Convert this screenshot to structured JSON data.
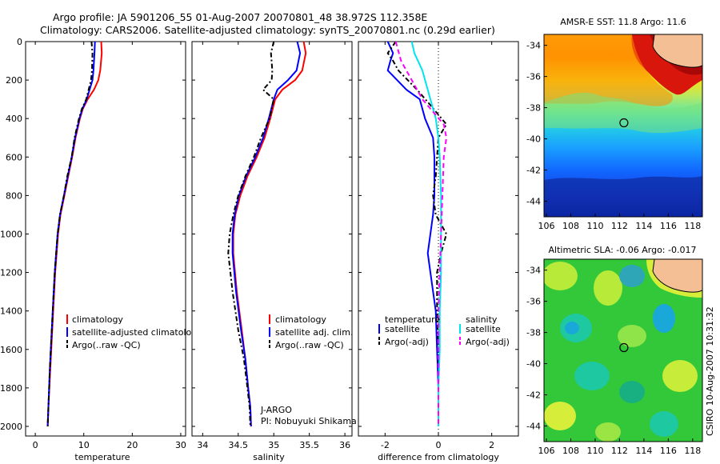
{
  "title": {
    "line1": "Argo profile: JA 5901206_55 01-Aug-2007 20070801_48 38.972S 112.358E",
    "line2": "Climatology: CARS2006. Satellite-adjusted climatology: synTS_20070801.nc (0.29d earlier)"
  },
  "colors": {
    "climatology": "#ff0000",
    "satellite": "#0000ff",
    "argo": "#000000",
    "salinity_satellite": "#00e5ee",
    "salinity_argo": "#ff00ff",
    "land": "#f4bf95"
  },
  "side_text": "CSIRO 10-Aug-2007 10:31:32",
  "chart_data": [
    {
      "type": "line",
      "id": "temperature",
      "xlabel": "temperature",
      "ylabel": "",
      "xlim": [
        -2,
        31
      ],
      "ylim": [
        2050,
        0
      ],
      "xticks": [
        0,
        10,
        20,
        30
      ],
      "yticks": [
        0,
        200,
        400,
        600,
        800,
        1000,
        1200,
        1400,
        1600,
        1800,
        2000
      ],
      "legend": {
        "position": "lower-right",
        "entries": [
          "climatology",
          "satellite-adjusted climatology",
          "Argo(..raw -QC)"
        ]
      },
      "series": [
        {
          "name": "climatology",
          "color": "#ff0000",
          "dash": "",
          "x": [
            13.6,
            13.7,
            13.4,
            13.0,
            12.1,
            10.8,
            9.8,
            9.2,
            8.3,
            7.6,
            6.8,
            6.0,
            5.2,
            4.7,
            4.1,
            3.7,
            3.4,
            3.1,
            2.9,
            2.7,
            2.55
          ],
          "y": [
            0,
            60,
            150,
            200,
            250,
            300,
            350,
            400,
            500,
            600,
            700,
            800,
            900,
            1000,
            1200,
            1400,
            1550,
            1700,
            1800,
            1900,
            2000
          ]
        },
        {
          "name": "satellite-adjusted climatology",
          "color": "#0000ff",
          "dash": "",
          "x": [
            12.3,
            12.2,
            12.0,
            11.8,
            11.2,
            10.6,
            9.7,
            9.1,
            8.2,
            7.5,
            6.7,
            5.9,
            5.1,
            4.6,
            4.0,
            3.6,
            3.3,
            3.0,
            2.85,
            2.7,
            2.55
          ],
          "y": [
            0,
            60,
            150,
            200,
            250,
            300,
            350,
            400,
            500,
            600,
            700,
            800,
            900,
            1000,
            1200,
            1400,
            1550,
            1700,
            1800,
            1900,
            2000
          ]
        },
        {
          "name": "Argo(..raw -QC)",
          "color": "#000000",
          "dash": "6,3,2,3",
          "x": [
            11.6,
            11.8,
            11.7,
            11.5,
            11.0,
            10.5,
            9.6,
            9.0,
            8.1,
            7.5,
            6.6,
            5.9,
            5.1,
            4.6,
            4.0,
            3.6,
            3.3,
            3.0,
            2.85,
            2.7,
            2.55
          ],
          "y": [
            0,
            60,
            150,
            200,
            250,
            300,
            350,
            400,
            500,
            600,
            700,
            800,
            900,
            1000,
            1200,
            1400,
            1550,
            1700,
            1800,
            1900,
            2000
          ]
        }
      ]
    },
    {
      "type": "line",
      "id": "salinity",
      "xlabel": "salinity",
      "ylabel": "",
      "xlim": [
        33.85,
        36.1
      ],
      "ylim": [
        2050,
        0
      ],
      "xticks": [
        34,
        34.5,
        35,
        35.5,
        36
      ],
      "legend": {
        "position": "lower-right",
        "entries": [
          "climatology",
          "satellite adj. clim.",
          "Argo(..raw -QC)"
        ]
      },
      "note": [
        "J-ARGO",
        "PI: Nobuyuki Shikama"
      ],
      "series": [
        {
          "name": "climatology",
          "color": "#ff0000",
          "dash": "",
          "x": [
            35.42,
            35.45,
            35.4,
            35.3,
            35.12,
            35.02,
            34.95,
            34.87,
            34.76,
            34.63,
            34.53,
            34.46,
            34.43,
            34.43,
            34.48,
            34.55,
            34.6,
            34.64,
            34.67,
            34.68
          ],
          "y": [
            0,
            60,
            150,
            200,
            250,
            300,
            400,
            500,
            600,
            700,
            800,
            900,
            1000,
            1100,
            1300,
            1500,
            1650,
            1800,
            1900,
            2000
          ]
        },
        {
          "name": "satellite adj. clim.",
          "color": "#0000ff",
          "dash": "",
          "x": [
            35.33,
            35.37,
            35.32,
            35.2,
            35.05,
            35.0,
            34.93,
            34.85,
            34.74,
            34.61,
            34.51,
            34.45,
            34.42,
            34.42,
            34.47,
            34.54,
            34.6,
            34.64,
            34.67,
            34.68
          ],
          "y": [
            0,
            60,
            150,
            200,
            250,
            300,
            400,
            500,
            600,
            700,
            800,
            900,
            1000,
            1100,
            1300,
            1500,
            1650,
            1800,
            1900,
            2000
          ]
        },
        {
          "name": "Argo(..raw -QC)",
          "color": "#000000",
          "dash": "6,3,2,3",
          "x": [
            35.0,
            34.96,
            34.98,
            34.97,
            34.85,
            35.0,
            34.94,
            34.82,
            34.72,
            34.6,
            34.5,
            34.43,
            34.38,
            34.36,
            34.42,
            34.5,
            34.58,
            34.63,
            34.66,
            34.67
          ],
          "y": [
            0,
            60,
            150,
            200,
            250,
            300,
            400,
            500,
            600,
            700,
            800,
            900,
            1000,
            1100,
            1300,
            1500,
            1650,
            1800,
            1900,
            2000
          ]
        }
      ]
    },
    {
      "type": "line",
      "id": "difference",
      "xlabel": "difference from climatology",
      "ylabel": "",
      "xlim": [
        -3.0,
        3.0
      ],
      "ylim": [
        2050,
        0
      ],
      "xticks": [
        -2,
        0,
        2
      ],
      "zero_line": true,
      "legend": {
        "position": "lower",
        "groups": [
          {
            "title": "temperature",
            "entries": [
              "satellite",
              "Argo(-adj)"
            ]
          },
          {
            "title": "salinity",
            "entries": [
              "satellite",
              "Argo(-adj)"
            ]
          }
        ]
      },
      "series": [
        {
          "name": "temperature satellite",
          "color": "#0000ff",
          "dash": "",
          "x": [
            -1.9,
            -1.7,
            -1.8,
            -1.9,
            -1.2,
            -0.7,
            -0.5,
            -0.2,
            -0.15,
            -0.15,
            -0.15,
            -0.2,
            -0.3,
            -0.4,
            -0.3,
            -0.1,
            -0.05,
            0.0,
            0.0
          ],
          "y": [
            0,
            60,
            100,
            150,
            250,
            300,
            400,
            500,
            600,
            700,
            800,
            900,
            1000,
            1100,
            1200,
            1400,
            1600,
            1800,
            2000
          ]
        },
        {
          "name": "temperature Argo(-adj)",
          "color": "#000000",
          "dash": "6,3,2,3",
          "x": [
            -1.6,
            -1.9,
            -1.7,
            -1.5,
            -0.8,
            -0.3,
            0.3,
            0.0,
            -0.05,
            -0.1,
            -0.2,
            -0.1,
            0.3,
            0.1,
            -0.05,
            -0.05,
            0.0,
            0.0,
            0.0
          ],
          "y": [
            0,
            60,
            100,
            150,
            250,
            330,
            430,
            500,
            600,
            700,
            800,
            900,
            1000,
            1100,
            1200,
            1400,
            1600,
            1800,
            2000
          ]
        },
        {
          "name": "salinity satellite",
          "color": "#00e5ee",
          "dash": "",
          "x": [
            -1.0,
            -0.9,
            -0.6,
            -0.3,
            -0.1,
            0.0,
            0.05,
            0.1,
            0.1,
            0.1,
            0.05,
            0.05,
            0.0,
            0.0
          ],
          "y": [
            0,
            60,
            150,
            300,
            400,
            500,
            600,
            800,
            1000,
            1200,
            1400,
            1600,
            1800,
            2000
          ]
        },
        {
          "name": "salinity Argo(-adj)",
          "color": "#ff00ff",
          "dash": "6,4",
          "x": [
            -1.6,
            -1.4,
            -1.0,
            -0.6,
            0.2,
            0.3,
            0.2,
            0.15,
            0.1,
            0.05,
            0.0,
            0.0,
            0.0
          ],
          "y": [
            0,
            100,
            200,
            300,
            430,
            500,
            600,
            800,
            1000,
            1200,
            1400,
            1700,
            2000
          ]
        }
      ]
    },
    {
      "type": "heatmap",
      "id": "sst-map",
      "title": "AMSR-E SST: 11.8 Argo: 11.6",
      "xlim": [
        105.8,
        118.8
      ],
      "ylim": [
        -45,
        -33.3
      ],
      "xticks": [
        106,
        108,
        110,
        112,
        114,
        116,
        118
      ],
      "yticks": [
        -34,
        -36,
        -38,
        -40,
        -42,
        -44
      ],
      "marker": {
        "lon": 112.358,
        "lat": -38.972
      }
    },
    {
      "type": "heatmap",
      "id": "sla-map",
      "title": "Altimetric SLA: -0.06 Argo: -0.017",
      "xlim": [
        105.8,
        118.8
      ],
      "ylim": [
        -45,
        -33.3
      ],
      "xticks": [
        106,
        108,
        110,
        112,
        114,
        116,
        118
      ],
      "yticks": [
        -34,
        -36,
        -38,
        -40,
        -42,
        -44
      ],
      "marker": {
        "lon": 112.358,
        "lat": -38.972
      }
    }
  ]
}
